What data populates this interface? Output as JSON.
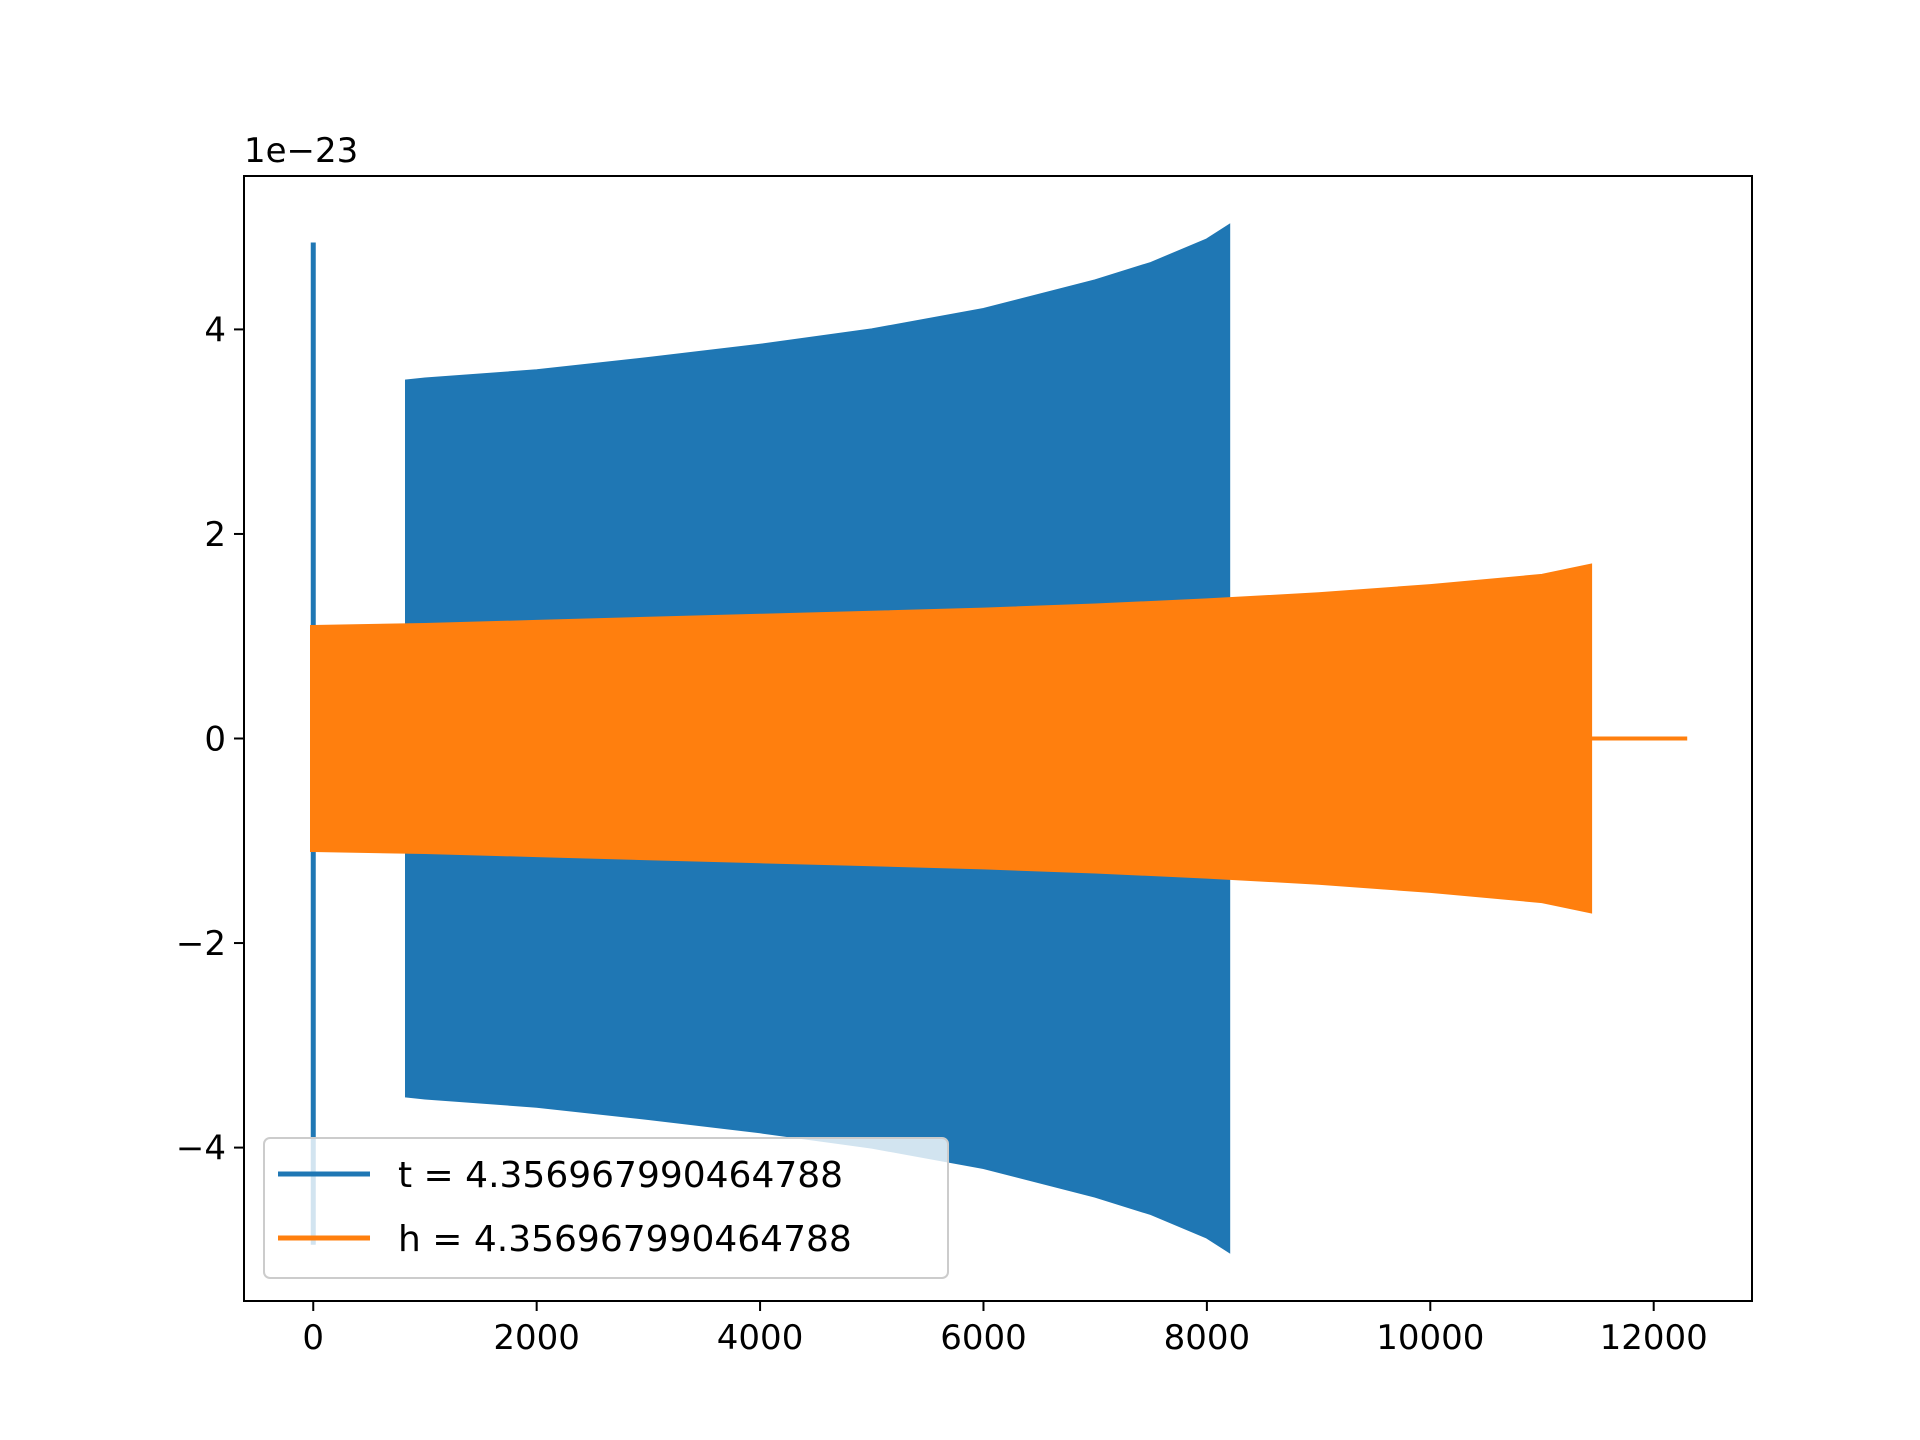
{
  "chart_data": {
    "type": "area",
    "title": "",
    "xlabel": "",
    "ylabel": "",
    "y_offset_label": "1e−23",
    "xlim": [
      -620,
      12880
    ],
    "ylim": [
      -5.5,
      5.5
    ],
    "xticks": [
      0,
      2000,
      4000,
      6000,
      8000,
      10000,
      12000
    ],
    "xtick_labels": [
      "0",
      "2000",
      "4000",
      "6000",
      "8000",
      "10000",
      "12000"
    ],
    "yticks": [
      -4,
      -2,
      0,
      2,
      4
    ],
    "ytick_labels": [
      "−4",
      "−2",
      "0",
      "2",
      "4"
    ],
    "grid": false,
    "legend_position": "lower-left",
    "series": [
      {
        "name": "t = 4.356967990464788",
        "color": "#1f77b4",
        "spike": {
          "x": 0,
          "ymin": -4.95,
          "ymax": 4.85
        },
        "envelope": {
          "x": [
            830,
            1000,
            2000,
            3000,
            4000,
            5000,
            6000,
            7000,
            7500,
            8000,
            8200
          ],
          "upper": [
            3.5,
            3.52,
            3.6,
            3.72,
            3.85,
            4.0,
            4.2,
            4.48,
            4.65,
            4.88,
            5.02
          ],
          "lower": [
            -3.5,
            -3.52,
            -3.6,
            -3.72,
            -3.85,
            -4.0,
            -4.2,
            -4.48,
            -4.65,
            -4.88,
            -5.02
          ]
        }
      },
      {
        "name": "h = 4.356967990464788",
        "color": "#ff7f0e",
        "envelope": {
          "x": [
            -20,
            0,
            1000,
            2000,
            3000,
            4000,
            5000,
            6000,
            7000,
            8000,
            9000,
            10000,
            11000,
            11440
          ],
          "upper": [
            1.1,
            1.1,
            1.12,
            1.15,
            1.18,
            1.21,
            1.24,
            1.27,
            1.31,
            1.36,
            1.42,
            1.5,
            1.6,
            1.7
          ],
          "lower": [
            -1.1,
            -1.1,
            -1.12,
            -1.15,
            -1.18,
            -1.21,
            -1.24,
            -1.27,
            -1.31,
            -1.36,
            -1.42,
            -1.5,
            -1.6,
            -1.7
          ]
        },
        "tail": {
          "x": [
            11440,
            12300
          ],
          "y": [
            0,
            0
          ]
        }
      }
    ]
  }
}
